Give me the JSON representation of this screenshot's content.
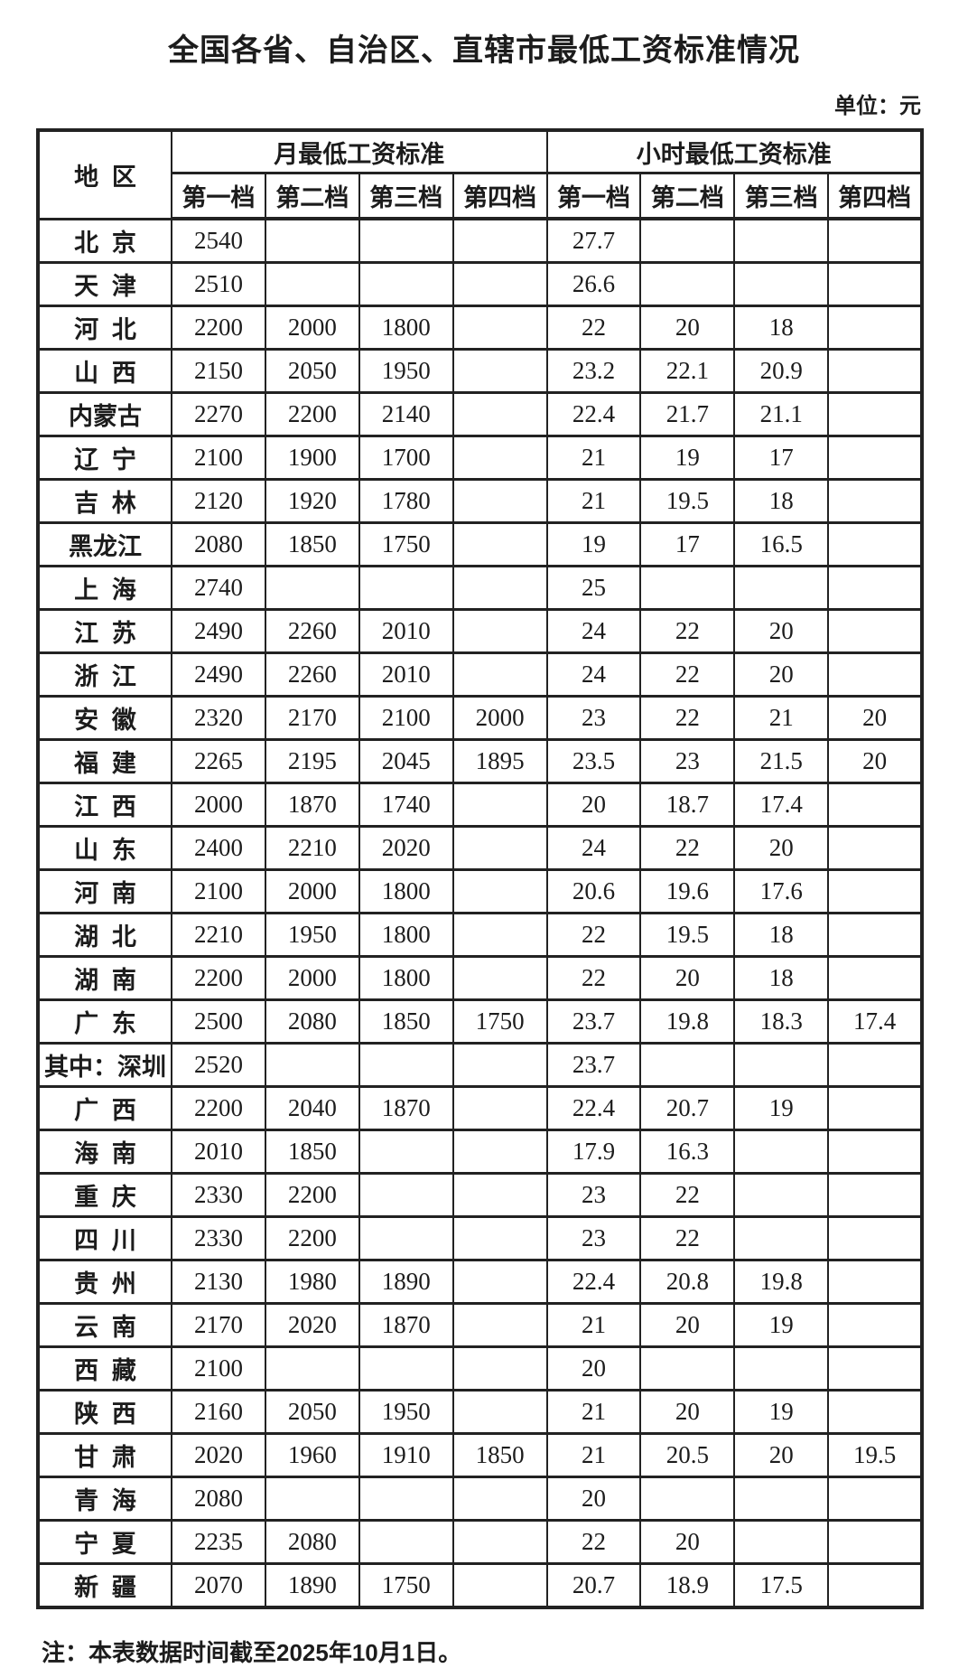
{
  "page": {
    "title": "全国各省、自治区、直辖市最低工资标准情况",
    "unit_label": "单位：元",
    "note": "注：本表数据时间截至2025年10月1日。"
  },
  "colors": {
    "background": "#ffffff",
    "text": "#1c1c1c",
    "border": "#222222"
  },
  "table": {
    "region_header": "地区",
    "group_headers": {
      "monthly": "月最低工资标准",
      "hourly": "小时最低工资标准"
    },
    "tier_headers": [
      "第一档",
      "第二档",
      "第三档",
      "第四档"
    ],
    "rows": [
      {
        "region": "北京",
        "monthly": [
          "2540",
          "",
          "",
          ""
        ],
        "hourly": [
          "27.7",
          "",
          "",
          ""
        ]
      },
      {
        "region": "天津",
        "monthly": [
          "2510",
          "",
          "",
          ""
        ],
        "hourly": [
          "26.6",
          "",
          "",
          ""
        ]
      },
      {
        "region": "河北",
        "monthly": [
          "2200",
          "2000",
          "1800",
          ""
        ],
        "hourly": [
          "22",
          "20",
          "18",
          ""
        ]
      },
      {
        "region": "山西",
        "monthly": [
          "2150",
          "2050",
          "1950",
          ""
        ],
        "hourly": [
          "23.2",
          "22.1",
          "20.9",
          ""
        ]
      },
      {
        "region": "内蒙古",
        "monthly": [
          "2270",
          "2200",
          "2140",
          ""
        ],
        "hourly": [
          "22.4",
          "21.7",
          "21.1",
          ""
        ]
      },
      {
        "region": "辽宁",
        "monthly": [
          "2100",
          "1900",
          "1700",
          ""
        ],
        "hourly": [
          "21",
          "19",
          "17",
          ""
        ]
      },
      {
        "region": "吉林",
        "monthly": [
          "2120",
          "1920",
          "1780",
          ""
        ],
        "hourly": [
          "21",
          "19.5",
          "18",
          ""
        ]
      },
      {
        "region": "黑龙江",
        "monthly": [
          "2080",
          "1850",
          "1750",
          ""
        ],
        "hourly": [
          "19",
          "17",
          "16.5",
          ""
        ]
      },
      {
        "region": "上海",
        "monthly": [
          "2740",
          "",
          "",
          ""
        ],
        "hourly": [
          "25",
          "",
          "",
          ""
        ]
      },
      {
        "region": "江苏",
        "monthly": [
          "2490",
          "2260",
          "2010",
          ""
        ],
        "hourly": [
          "24",
          "22",
          "20",
          ""
        ]
      },
      {
        "region": "浙江",
        "monthly": [
          "2490",
          "2260",
          "2010",
          ""
        ],
        "hourly": [
          "24",
          "22",
          "20",
          ""
        ]
      },
      {
        "region": "安徽",
        "monthly": [
          "2320",
          "2170",
          "2100",
          "2000"
        ],
        "hourly": [
          "23",
          "22",
          "21",
          "20"
        ]
      },
      {
        "region": "福建",
        "monthly": [
          "2265",
          "2195",
          "2045",
          "1895"
        ],
        "hourly": [
          "23.5",
          "23",
          "21.5",
          "20"
        ]
      },
      {
        "region": "江西",
        "monthly": [
          "2000",
          "1870",
          "1740",
          ""
        ],
        "hourly": [
          "20",
          "18.7",
          "17.4",
          ""
        ]
      },
      {
        "region": "山东",
        "monthly": [
          "2400",
          "2210",
          "2020",
          ""
        ],
        "hourly": [
          "24",
          "22",
          "20",
          ""
        ]
      },
      {
        "region": "河南",
        "monthly": [
          "2100",
          "2000",
          "1800",
          ""
        ],
        "hourly": [
          "20.6",
          "19.6",
          "17.6",
          ""
        ]
      },
      {
        "region": "湖北",
        "monthly": [
          "2210",
          "1950",
          "1800",
          ""
        ],
        "hourly": [
          "22",
          "19.5",
          "18",
          ""
        ]
      },
      {
        "region": "湖南",
        "monthly": [
          "2200",
          "2000",
          "1800",
          ""
        ],
        "hourly": [
          "22",
          "20",
          "18",
          ""
        ]
      },
      {
        "region": "广东",
        "monthly": [
          "2500",
          "2080",
          "1850",
          "1750"
        ],
        "hourly": [
          "23.7",
          "19.8",
          "18.3",
          "17.4"
        ]
      },
      {
        "region": "其中：深圳",
        "monthly": [
          "2520",
          "",
          "",
          ""
        ],
        "hourly": [
          "23.7",
          "",
          "",
          ""
        ]
      },
      {
        "region": "广西",
        "monthly": [
          "2200",
          "2040",
          "1870",
          ""
        ],
        "hourly": [
          "22.4",
          "20.7",
          "19",
          ""
        ]
      },
      {
        "region": "海南",
        "monthly": [
          "2010",
          "1850",
          "",
          ""
        ],
        "hourly": [
          "17.9",
          "16.3",
          "",
          ""
        ]
      },
      {
        "region": "重庆",
        "monthly": [
          "2330",
          "2200",
          "",
          ""
        ],
        "hourly": [
          "23",
          "22",
          "",
          ""
        ]
      },
      {
        "region": "四川",
        "monthly": [
          "2330",
          "2200",
          "",
          ""
        ],
        "hourly": [
          "23",
          "22",
          "",
          ""
        ]
      },
      {
        "region": "贵州",
        "monthly": [
          "2130",
          "1980",
          "1890",
          ""
        ],
        "hourly": [
          "22.4",
          "20.8",
          "19.8",
          ""
        ]
      },
      {
        "region": "云南",
        "monthly": [
          "2170",
          "2020",
          "1870",
          ""
        ],
        "hourly": [
          "21",
          "20",
          "19",
          ""
        ]
      },
      {
        "region": "西藏",
        "monthly": [
          "2100",
          "",
          "",
          ""
        ],
        "hourly": [
          "20",
          "",
          "",
          ""
        ]
      },
      {
        "region": "陕西",
        "monthly": [
          "2160",
          "2050",
          "1950",
          ""
        ],
        "hourly": [
          "21",
          "20",
          "19",
          ""
        ]
      },
      {
        "region": "甘肃",
        "monthly": [
          "2020",
          "1960",
          "1910",
          "1850"
        ],
        "hourly": [
          "21",
          "20.5",
          "20",
          "19.5"
        ]
      },
      {
        "region": "青海",
        "monthly": [
          "2080",
          "",
          "",
          ""
        ],
        "hourly": [
          "20",
          "",
          "",
          ""
        ]
      },
      {
        "region": "宁夏",
        "monthly": [
          "2235",
          "2080",
          "",
          ""
        ],
        "hourly": [
          "22",
          "20",
          "",
          ""
        ]
      },
      {
        "region": "新疆",
        "monthly": [
          "2070",
          "1890",
          "1750",
          ""
        ],
        "hourly": [
          "20.7",
          "18.9",
          "17.5",
          ""
        ]
      }
    ]
  }
}
